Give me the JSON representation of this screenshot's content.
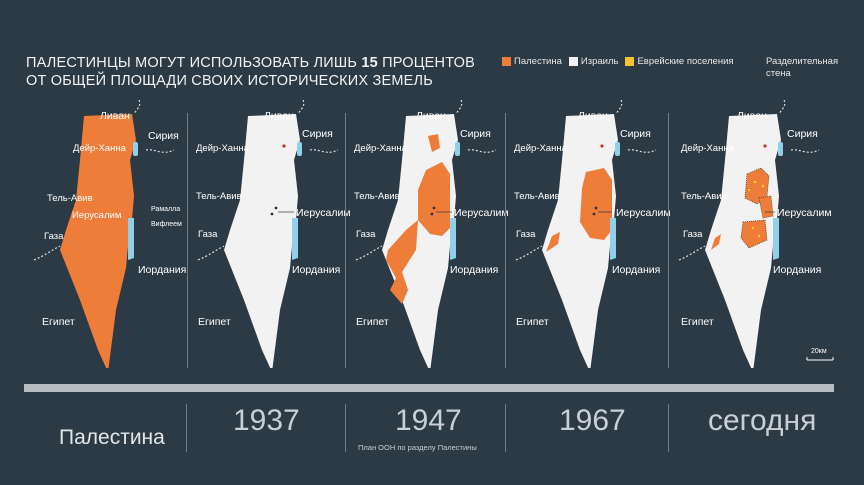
{
  "title": {
    "line1_prefix": "ПАЛЕСТИНЦЫ МОГУТ ИСПОЛЬЗОВАТЬ ЛИШЬ ",
    "line1_number": "15",
    "line1_suffix": " ПРОЦЕНТОВ",
    "line2": "ОТ ОБЩЕЙ ПЛОЩАДИ СВОИХ ИСТОРИЧЕСКИХ ЗЕМЕЛЬ"
  },
  "legend": {
    "items": [
      {
        "label": "Палестина",
        "color": "#ef7d3a"
      },
      {
        "label": "Израиль",
        "color": "#f2f2f2"
      },
      {
        "label": "Еврейские поселения",
        "color": "#f5c330"
      }
    ],
    "wall_label": "Разделительная стена"
  },
  "place_labels": {
    "lebanon": "Ливан",
    "syria": "Сирия",
    "deir_hanna": "Дейр-Ханна",
    "tel_aviv": "Тель-Авив",
    "jerusalem": "Иерусалим",
    "gaza": "Газа",
    "jordan": "Иордания",
    "egypt": "Египет",
    "ramallah": "Рамалла",
    "bethlehem": "Вифлеем"
  },
  "timeline": [
    {
      "label": "Палестина",
      "note": ""
    },
    {
      "label": "1937",
      "note": ""
    },
    {
      "label": "1947",
      "note": "План ООН по разделу Палестины"
    },
    {
      "label": "1967",
      "note": ""
    },
    {
      "label": "сегодня",
      "note": ""
    }
  ],
  "scale_bar": "20км",
  "colors": {
    "background": "#2c3a45",
    "palestine": "#ef7d3a",
    "israel": "#f2f2f2",
    "water": "#8fd0ea"
  }
}
